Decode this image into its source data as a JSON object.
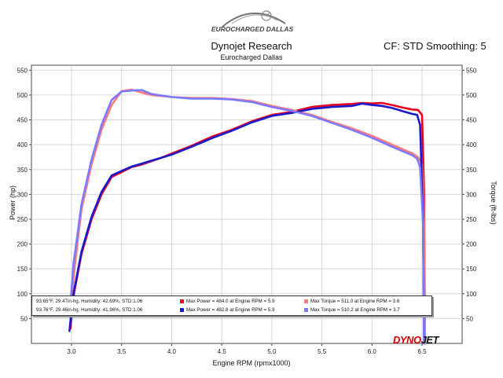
{
  "header": {
    "logo_text": "EUROCHARGED DALLAS",
    "title": "Dynojet Research",
    "subtitle": "Eurocharged Dallas",
    "cf_text": "CF: STD Smoothing: 5"
  },
  "brand": {
    "part1": "DYNO",
    "part2": "JET"
  },
  "colors": {
    "run1_power": "#e8001c",
    "run1_torque": "#ff7a7a",
    "run2_power": "#1a1acc",
    "run2_torque": "#7a7aff"
  },
  "legend": [
    {
      "conditions": "93.65°F, 29.47in-hg, Humidity: 42.69%, STD:1.06",
      "max_power": "Max Power = 484.0 at Engine RPM = 5.9",
      "max_torque": "Max Torque = 511.0 at Engine RPM = 3.6"
    },
    {
      "conditions": "93.76°F, 29.46in-hg, Humidity: 41.96%, STD:1.06",
      "max_power": "Max Power = 482.8 at Engine RPM = 5.9",
      "max_torque": "Max Torque = 510.2 at Engine RPM = 3.7"
    }
  ],
  "chart_data": {
    "type": "line",
    "xlabel": "Engine RPM (rpmx1000)",
    "ylabel": "Power (hp)",
    "y2label": "Torque (ft-lbs)",
    "xlim": [
      2.6,
      6.9
    ],
    "ylim": [
      0,
      560
    ],
    "y2lim": [
      0,
      560
    ],
    "x_ticks": [
      "3.0",
      "3.5",
      "4.0",
      "4.5",
      "5.0",
      "5.5",
      "6.0",
      "6.5"
    ],
    "y_ticks": [
      "50",
      "100",
      "150",
      "200",
      "250",
      "300",
      "350",
      "400",
      "450",
      "500",
      "550"
    ],
    "grid": true,
    "series": [
      {
        "name": "Max Power = 484.0 at Engine RPM = 5.9",
        "axis": "left",
        "x": [
          2.99,
          3.02,
          3.1,
          3.2,
          3.3,
          3.4,
          3.5,
          3.6,
          3.7,
          3.8,
          3.9,
          4.0,
          4.2,
          4.4,
          4.6,
          4.8,
          5.0,
          5.2,
          5.4,
          5.6,
          5.8,
          5.9,
          6.0,
          6.1,
          6.2,
          6.3,
          6.4,
          6.46,
          6.5,
          6.52,
          6.53
        ],
        "y": [
          30,
          95,
          180,
          250,
          300,
          335,
          345,
          355,
          360,
          367,
          374,
          382,
          398,
          416,
          430,
          447,
          460,
          466,
          476,
          480,
          482,
          484,
          483,
          484,
          480,
          475,
          471,
          470,
          460,
          300,
          0
        ]
      },
      {
        "name": "Max Torque = 511.0 at Engine RPM = 3.6",
        "axis": "right",
        "x": [
          2.99,
          3.03,
          3.1,
          3.2,
          3.3,
          3.4,
          3.5,
          3.6,
          3.7,
          3.8,
          4.0,
          4.2,
          4.4,
          4.6,
          4.8,
          5.0,
          5.2,
          5.4,
          5.6,
          5.8,
          6.0,
          6.2,
          6.4,
          6.46,
          6.5,
          6.52,
          6.53
        ],
        "y": [
          60,
          150,
          270,
          360,
          430,
          480,
          508,
          511,
          505,
          500,
          496,
          494,
          494,
          492,
          488,
          478,
          470,
          460,
          446,
          433,
          418,
          400,
          383,
          375,
          360,
          250,
          0
        ]
      },
      {
        "name": "Max Power = 482.8 at Engine RPM = 5.9",
        "axis": "left",
        "x": [
          2.98,
          3.01,
          3.1,
          3.2,
          3.3,
          3.4,
          3.5,
          3.6,
          3.7,
          3.8,
          3.9,
          4.0,
          4.2,
          4.4,
          4.6,
          4.8,
          5.0,
          5.2,
          5.4,
          5.6,
          5.8,
          5.9,
          6.0,
          6.1,
          6.2,
          6.3,
          6.4,
          6.45,
          6.48,
          6.51,
          6.52
        ],
        "y": [
          25,
          90,
          185,
          255,
          305,
          338,
          347,
          356,
          362,
          368,
          374,
          380,
          396,
          413,
          428,
          445,
          458,
          464,
          472,
          476,
          478,
          482.8,
          480,
          478,
          474,
          468,
          462,
          460,
          440,
          250,
          0
        ]
      },
      {
        "name": "Max Torque = 510.2 at Engine RPM = 3.7",
        "axis": "right",
        "x": [
          2.98,
          3.02,
          3.1,
          3.2,
          3.3,
          3.4,
          3.5,
          3.6,
          3.7,
          3.8,
          4.0,
          4.2,
          4.4,
          4.6,
          4.8,
          5.0,
          5.2,
          5.4,
          5.6,
          5.8,
          6.0,
          6.2,
          6.4,
          6.45,
          6.48,
          6.51,
          6.52
        ],
        "y": [
          55,
          160,
          280,
          370,
          440,
          490,
          507,
          509,
          510.2,
          502,
          496,
          493,
          493,
          491,
          486,
          476,
          468,
          458,
          444,
          430,
          414,
          396,
          379,
          372,
          355,
          240,
          0
        ]
      }
    ]
  }
}
